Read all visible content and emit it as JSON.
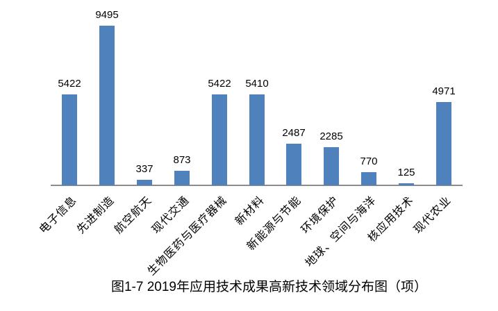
{
  "chart_data": {
    "type": "bar",
    "categories": [
      "电子信息",
      "先进制造",
      "航空航天",
      "现代交通",
      "生物医药与医疗器械",
      "新材料",
      "新能源与节能",
      "环境保护",
      "地球、空间与海洋",
      "核应用技术",
      "现代农业"
    ],
    "values": [
      5422,
      9495,
      337,
      873,
      5422,
      5410,
      2487,
      2285,
      770,
      125,
      4971
    ],
    "data_labels": [
      "5422",
      "9495",
      "337",
      "873",
      "5422",
      "5410",
      "2487",
      "2285",
      "770",
      "125",
      "4971"
    ],
    "title": "图1-7 2019年应用技术成果高新技术领域分布图（项）",
    "xlabel": "",
    "ylabel": "",
    "ylim": [
      0,
      10000
    ],
    "grid": false,
    "legend": "none",
    "category_label_rotation_deg": -45,
    "colors": {
      "bar": "#4F81BD",
      "axis_line": "#8C8C8C",
      "text": "#000000",
      "background": "#FFFFFF"
    }
  }
}
